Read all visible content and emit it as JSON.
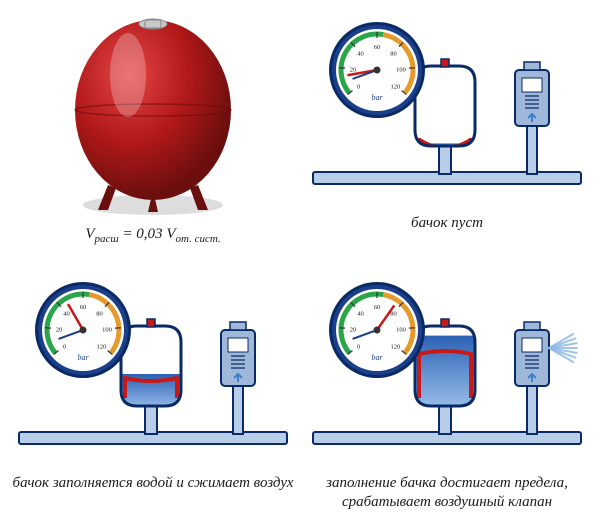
{
  "panels": {
    "photo": {
      "formula_lhs": "V",
      "formula_sub1": "расш",
      "formula_eq": " = 0,03 ",
      "formula_rhs": "V",
      "formula_sub2": "от. сист.",
      "tank_color": "#b01818",
      "tank_shadow": "#6a0e0e",
      "tank_highlight": "#e64545",
      "cap_color": "#c9c9c9"
    },
    "state1": {
      "caption": "бачок пуст",
      "water_level": 0.02,
      "membrane_y": 0.92,
      "valve_active": false,
      "gauge_needle_deg": -100
    },
    "state2": {
      "caption": "бачок заполняется водой и сжимает воздух",
      "water_level": 0.25,
      "membrane_y": 0.65,
      "valve_active": false,
      "gauge_needle_deg": -30
    },
    "state3": {
      "caption": "заполнение бачка достигает предела, срабатывает воздушный клапан",
      "water_level": 0.55,
      "membrane_y": 0.35,
      "valve_active": true,
      "gauge_needle_deg": 35
    }
  },
  "style": {
    "background": "#ffffff",
    "pipe_stroke": "#0a2a66",
    "pipe_fill": "#b8cde8",
    "tank_outline": "#0a2a66",
    "tank_outline_w": 3,
    "membrane_color": "#c81818",
    "membrane_w": 4,
    "water_top": "#2b62b5",
    "water_bottom": "#9cc0ea",
    "air_color": "#ffffff",
    "gauge_face": "#ffffff",
    "gauge_rim1": "#1b3f8a",
    "gauge_rim2": "#0a2a66",
    "gauge_green": "#2aa54a",
    "gauge_orange": "#e69a2b",
    "gauge_text": "#1a1a1a",
    "gauge_label_bar": "bar",
    "gauge_ticks": [
      "0",
      "20",
      "40",
      "60",
      "80",
      "100",
      "120"
    ],
    "valve_body": "#9fb8d9",
    "valve_outline": "#0a2a66",
    "spray_color": "#8fb9e6",
    "arrow_color": "#3a7ed0"
  },
  "dims": {
    "panel_svg_w": 280,
    "panel_svg_h": 200,
    "photo_svg_w": 240,
    "photo_svg_h": 210
  }
}
